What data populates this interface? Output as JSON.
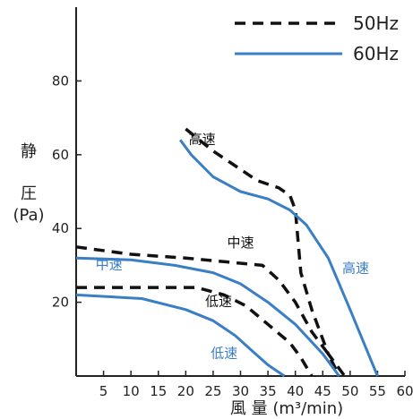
{
  "chart_data": {
    "type": "line",
    "xlabel": "風 量 (m³/min)",
    "ylabel_lines": [
      "静",
      "圧",
      "(Pa)"
    ],
    "xlim": [
      0,
      60
    ],
    "ylim": [
      0,
      100
    ],
    "x_ticks": [
      5,
      10,
      15,
      20,
      25,
      30,
      35,
      40,
      45,
      50,
      55,
      60
    ],
    "y_ticks": [
      20,
      40,
      60,
      80
    ],
    "grid": false,
    "legend_position": "top-right",
    "legend": [
      {
        "label": "50Hz",
        "style": "dashed",
        "color": "#111111"
      },
      {
        "label": "60Hz",
        "style": "solid",
        "color": "#3a7ec6"
      }
    ],
    "series": [
      {
        "frequency": "50Hz",
        "label": "高速",
        "label_color": "#111111",
        "points": [
          [
            20,
            67
          ],
          [
            25,
            61
          ],
          [
            28,
            58
          ],
          [
            33,
            53
          ],
          [
            37,
            51
          ],
          [
            39,
            49
          ],
          [
            40,
            45
          ],
          [
            41,
            28
          ],
          [
            43,
            18
          ],
          [
            46,
            6
          ],
          [
            49,
            0
          ]
        ]
      },
      {
        "frequency": "60Hz",
        "label": "高速",
        "label_color": "#3a7ec6",
        "points": [
          [
            19,
            64
          ],
          [
            21,
            60
          ],
          [
            25,
            54
          ],
          [
            30,
            50
          ],
          [
            35,
            48
          ],
          [
            39,
            45
          ],
          [
            42,
            41
          ],
          [
            46,
            32
          ],
          [
            50,
            18
          ],
          [
            55,
            0
          ]
        ]
      },
      {
        "frequency": "50Hz",
        "label": "中速",
        "label_color": "#111111",
        "points": [
          [
            0,
            35
          ],
          [
            10,
            33
          ],
          [
            20,
            32
          ],
          [
            27,
            31
          ],
          [
            34,
            30
          ],
          [
            37,
            26
          ],
          [
            40,
            20
          ],
          [
            43,
            12
          ],
          [
            46,
            6
          ],
          [
            48,
            0
          ]
        ]
      },
      {
        "frequency": "60Hz",
        "label": "中速",
        "label_color": "#3a7ec6",
        "points": [
          [
            0,
            32
          ],
          [
            10,
            31.5
          ],
          [
            18,
            30
          ],
          [
            25,
            28
          ],
          [
            30,
            25
          ],
          [
            35,
            20
          ],
          [
            40,
            14
          ],
          [
            45,
            6
          ],
          [
            48,
            0
          ]
        ]
      },
      {
        "frequency": "50Hz",
        "label": "低速",
        "label_color": "#111111",
        "points": [
          [
            0,
            24
          ],
          [
            12,
            24
          ],
          [
            22,
            24
          ],
          [
            27,
            22
          ],
          [
            31,
            19
          ],
          [
            35,
            14
          ],
          [
            39,
            9
          ],
          [
            41,
            5
          ],
          [
            43,
            0
          ]
        ]
      },
      {
        "frequency": "60Hz",
        "label": "低速",
        "label_color": "#3a7ec6",
        "points": [
          [
            0,
            22
          ],
          [
            12,
            21
          ],
          [
            20,
            18
          ],
          [
            25,
            15
          ],
          [
            29,
            11
          ],
          [
            32,
            7
          ],
          [
            35,
            3
          ],
          [
            38,
            0
          ]
        ]
      }
    ],
    "curve_labels": [
      {
        "text": "高速",
        "x": 23,
        "y": 63,
        "color": "#111111"
      },
      {
        "text": "中速",
        "x": 30,
        "y": 35,
        "color": "#111111"
      },
      {
        "text": "低速",
        "x": 26,
        "y": 19,
        "color": "#111111"
      },
      {
        "text": "中速",
        "x": 6,
        "y": 29,
        "color": "#3a7ec6"
      },
      {
        "text": "低速",
        "x": 27,
        "y": 5,
        "color": "#3a7ec6"
      },
      {
        "text": "高速",
        "x": 51,
        "y": 28,
        "color": "#3a7ec6"
      }
    ]
  }
}
